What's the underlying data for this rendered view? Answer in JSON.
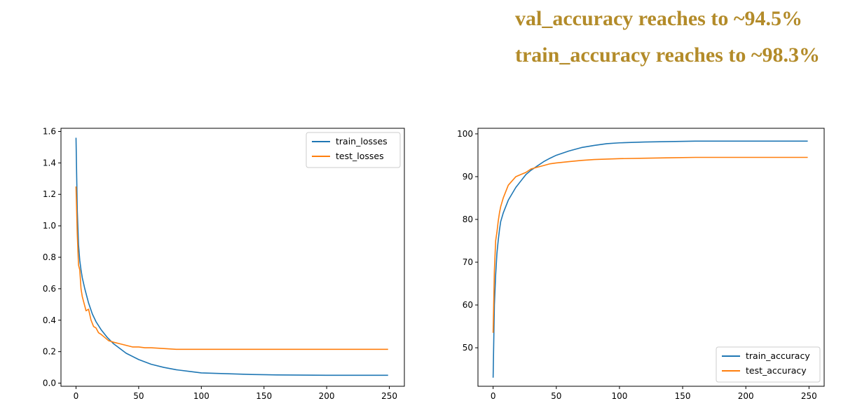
{
  "headlines": {
    "val": "val_accuracy reaches to ~94.5%",
    "train": "train_accuracy reaches to ~98.3%",
    "color": "#b38b29"
  },
  "chart_data": [
    {
      "type": "line",
      "title": "",
      "xlabel": "",
      "ylabel": "",
      "xlim": [
        -12,
        262
      ],
      "ylim": [
        -0.02,
        1.62
      ],
      "xticks": [
        0,
        50,
        100,
        150,
        200,
        250
      ],
      "yticks": [
        0.0,
        0.2,
        0.4,
        0.6,
        0.8,
        1.0,
        1.2,
        1.4,
        1.6
      ],
      "tick_decimals": 1,
      "grid": false,
      "legend": "top-right",
      "series": [
        {
          "name": "train_losses",
          "color": "#1f77b4",
          "x": [
            0,
            1,
            2,
            3,
            4,
            5,
            7,
            10,
            13,
            16,
            20,
            25,
            30,
            35,
            40,
            50,
            60,
            70,
            80,
            90,
            100,
            120,
            140,
            160,
            180,
            200,
            220,
            240,
            249
          ],
          "y": [
            1.56,
            1.1,
            0.88,
            0.78,
            0.72,
            0.67,
            0.6,
            0.51,
            0.44,
            0.39,
            0.34,
            0.29,
            0.25,
            0.22,
            0.19,
            0.15,
            0.12,
            0.1,
            0.085,
            0.075,
            0.065,
            0.06,
            0.055,
            0.052,
            0.051,
            0.05,
            0.05,
            0.05,
            0.05
          ]
        },
        {
          "name": "test_losses",
          "color": "#ff7f0e",
          "x": [
            0,
            1,
            2,
            3,
            4,
            5,
            6,
            8,
            10,
            12,
            14,
            16,
            18,
            20,
            23,
            26,
            30,
            35,
            40,
            45,
            50,
            55,
            60,
            70,
            80,
            90,
            100,
            120,
            140,
            160,
            180,
            200,
            220,
            240,
            249
          ],
          "y": [
            1.25,
            0.95,
            0.75,
            0.72,
            0.6,
            0.55,
            0.52,
            0.46,
            0.47,
            0.4,
            0.36,
            0.35,
            0.32,
            0.31,
            0.29,
            0.27,
            0.26,
            0.25,
            0.24,
            0.23,
            0.23,
            0.225,
            0.225,
            0.22,
            0.215,
            0.215,
            0.215,
            0.215,
            0.215,
            0.215,
            0.215,
            0.215,
            0.215,
            0.215,
            0.215
          ]
        }
      ]
    },
    {
      "type": "line",
      "title": "",
      "xlabel": "",
      "ylabel": "",
      "xlim": [
        -12,
        262
      ],
      "ylim": [
        41,
        101.3
      ],
      "xticks": [
        0,
        50,
        100,
        150,
        200,
        250
      ],
      "yticks": [
        50,
        60,
        70,
        80,
        90,
        100
      ],
      "tick_decimals": 0,
      "grid": false,
      "legend": "bottom-right",
      "series": [
        {
          "name": "train_accuracy",
          "color": "#1f77b4",
          "x": [
            0,
            1,
            2,
            3,
            4,
            5,
            6,
            8,
            10,
            12,
            15,
            18,
            22,
            26,
            30,
            35,
            40,
            45,
            50,
            60,
            70,
            80,
            90,
            100,
            120,
            140,
            160,
            180,
            200,
            220,
            240,
            249
          ],
          "y": [
            43.0,
            60.0,
            67.0,
            72.0,
            75.0,
            77.5,
            79.5,
            81.5,
            83.0,
            84.5,
            86.0,
            87.5,
            89.0,
            90.5,
            91.5,
            92.5,
            93.5,
            94.3,
            95.0,
            96.0,
            96.8,
            97.3,
            97.7,
            97.9,
            98.1,
            98.2,
            98.3,
            98.3,
            98.3,
            98.3,
            98.3,
            98.3
          ]
        },
        {
          "name": "test_accuracy",
          "color": "#ff7f0e",
          "x": [
            0,
            1,
            2,
            3,
            4,
            5,
            6,
            8,
            10,
            12,
            15,
            18,
            22,
            26,
            30,
            35,
            40,
            45,
            50,
            60,
            70,
            80,
            90,
            100,
            120,
            140,
            160,
            180,
            200,
            220,
            240,
            249
          ],
          "y": [
            53.5,
            68.0,
            75.0,
            77.0,
            79.5,
            81.5,
            83.0,
            85.0,
            86.5,
            88.0,
            89.0,
            90.0,
            90.5,
            91.0,
            91.8,
            92.2,
            92.6,
            93.0,
            93.2,
            93.5,
            93.8,
            94.0,
            94.1,
            94.2,
            94.3,
            94.4,
            94.5,
            94.5,
            94.5,
            94.5,
            94.5,
            94.5
          ]
        }
      ]
    }
  ]
}
